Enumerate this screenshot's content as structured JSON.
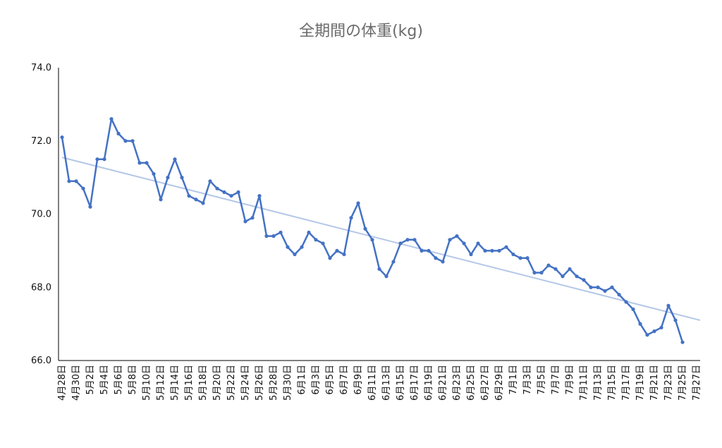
{
  "chart_data": {
    "type": "line",
    "title": "全期間の体重(kg)",
    "xlabel": "",
    "ylabel": "",
    "ylim": [
      66.0,
      74.0
    ],
    "yticks": [
      "74.0",
      "72.0",
      "70.0",
      "68.0",
      "66.0"
    ],
    "y_tick_values": [
      74,
      72,
      70,
      68,
      66
    ],
    "grid": false,
    "legend": "none",
    "x_tick_labels": [
      "4月28日",
      "4月30日",
      "5月2日",
      "5月4日",
      "5月6日",
      "5月8日",
      "5月10日",
      "5月12日",
      "5月14日",
      "5月16日",
      "5月18日",
      "5月20日",
      "5月22日",
      "5月24日",
      "5月26日",
      "5月28日",
      "5月30日",
      "6月1日",
      "6月3日",
      "6月5日",
      "6月7日",
      "6月9日",
      "6月11日",
      "6月13日",
      "6月15日",
      "6月17日",
      "6月19日",
      "6月21日",
      "6月23日",
      "6月25日",
      "6月27日",
      "6月29日",
      "7月1日",
      "7月3日",
      "7月5日",
      "7月7日",
      "7月9日",
      "7月11日",
      "7月13日",
      "7月15日",
      "7月17日",
      "7月19日",
      "7月21日",
      "7月23日",
      "7月25日",
      "7月27日"
    ],
    "series": [
      {
        "color": "#4472c4",
        "values": [
          72.1,
          70.9,
          70.9,
          70.7,
          70.2,
          71.5,
          71.5,
          72.6,
          72.2,
          72.0,
          72.0,
          71.4,
          71.4,
          71.1,
          70.4,
          71.0,
          71.5,
          71.0,
          70.5,
          70.4,
          70.3,
          70.9,
          70.7,
          70.6,
          70.5,
          70.6,
          69.8,
          69.9,
          70.5,
          69.4,
          69.4,
          69.5,
          69.1,
          68.9,
          69.1,
          69.5,
          69.3,
          69.2,
          68.8,
          69.0,
          68.9,
          69.9,
          70.3,
          69.6,
          69.3,
          68.5,
          68.3,
          68.7,
          69.2,
          69.3,
          69.3,
          69.0,
          69.0,
          68.8,
          68.7,
          69.3,
          69.4,
          69.2,
          68.9,
          69.2,
          69.0,
          69.0,
          69.0,
          69.1,
          68.9,
          68.8,
          68.8,
          68.4,
          68.4,
          68.6,
          68.5,
          68.3,
          68.5,
          68.3,
          68.2,
          68.0,
          68.0,
          67.9,
          68.0,
          67.8,
          67.6,
          67.4,
          67.0,
          66.7,
          66.8,
          66.9,
          67.5,
          67.1,
          66.5
        ]
      }
    ],
    "trendline": {
      "color": "#b4c7e7",
      "start": 71.55,
      "end": 67.1
    }
  }
}
